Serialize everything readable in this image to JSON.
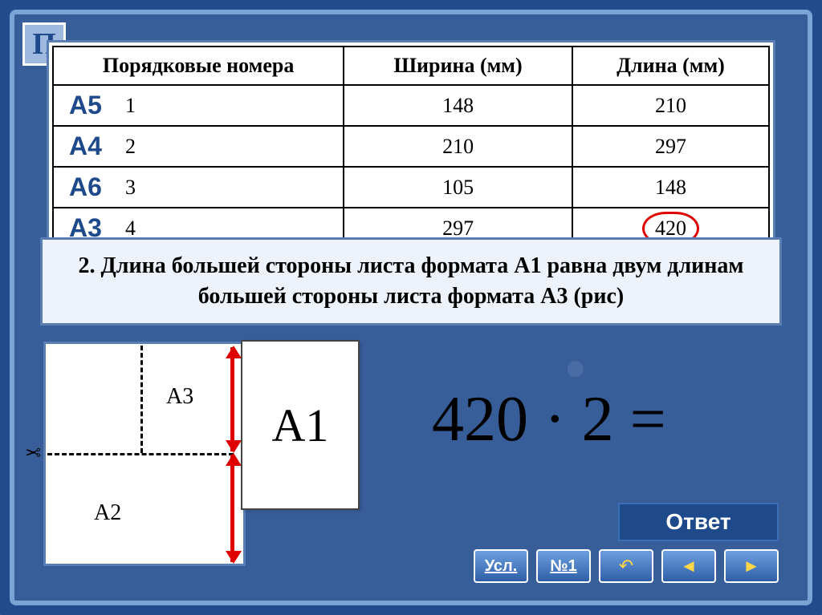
{
  "badge": "П",
  "table": {
    "headers": [
      "Порядковые номера",
      "Ширина (мм)",
      "Длина (мм)"
    ],
    "rows": [
      {
        "label": "А5",
        "num": "1",
        "width": "148",
        "length": "210",
        "circled": false
      },
      {
        "label": "А4",
        "num": "2",
        "width": "210",
        "length": "297",
        "circled": false
      },
      {
        "label": "А6",
        "num": "3",
        "width": "105",
        "length": "148",
        "circled": false
      },
      {
        "label": "А3",
        "num": "4",
        "width": "297",
        "length": "420",
        "circled": true
      }
    ]
  },
  "statement": "2. Длина большей стороны листа формата А1 равна двум длинам большей стороны листа формата А3 (рис)",
  "diagram": {
    "labelA3": "А3",
    "labelA2": "А2",
    "labelA1": "А1",
    "scissors": "✂"
  },
  "equation": "420 · 2 =",
  "answer_btn": "Ответ",
  "nav": {
    "usl": "Усл.",
    "no1": "№1"
  },
  "colors": {
    "frame": "#7aa3d6",
    "bg": "#1e4a8c",
    "accent_red": "#e00000",
    "panel": "#edf2fb",
    "btn_bg": "#1e4a8c"
  }
}
